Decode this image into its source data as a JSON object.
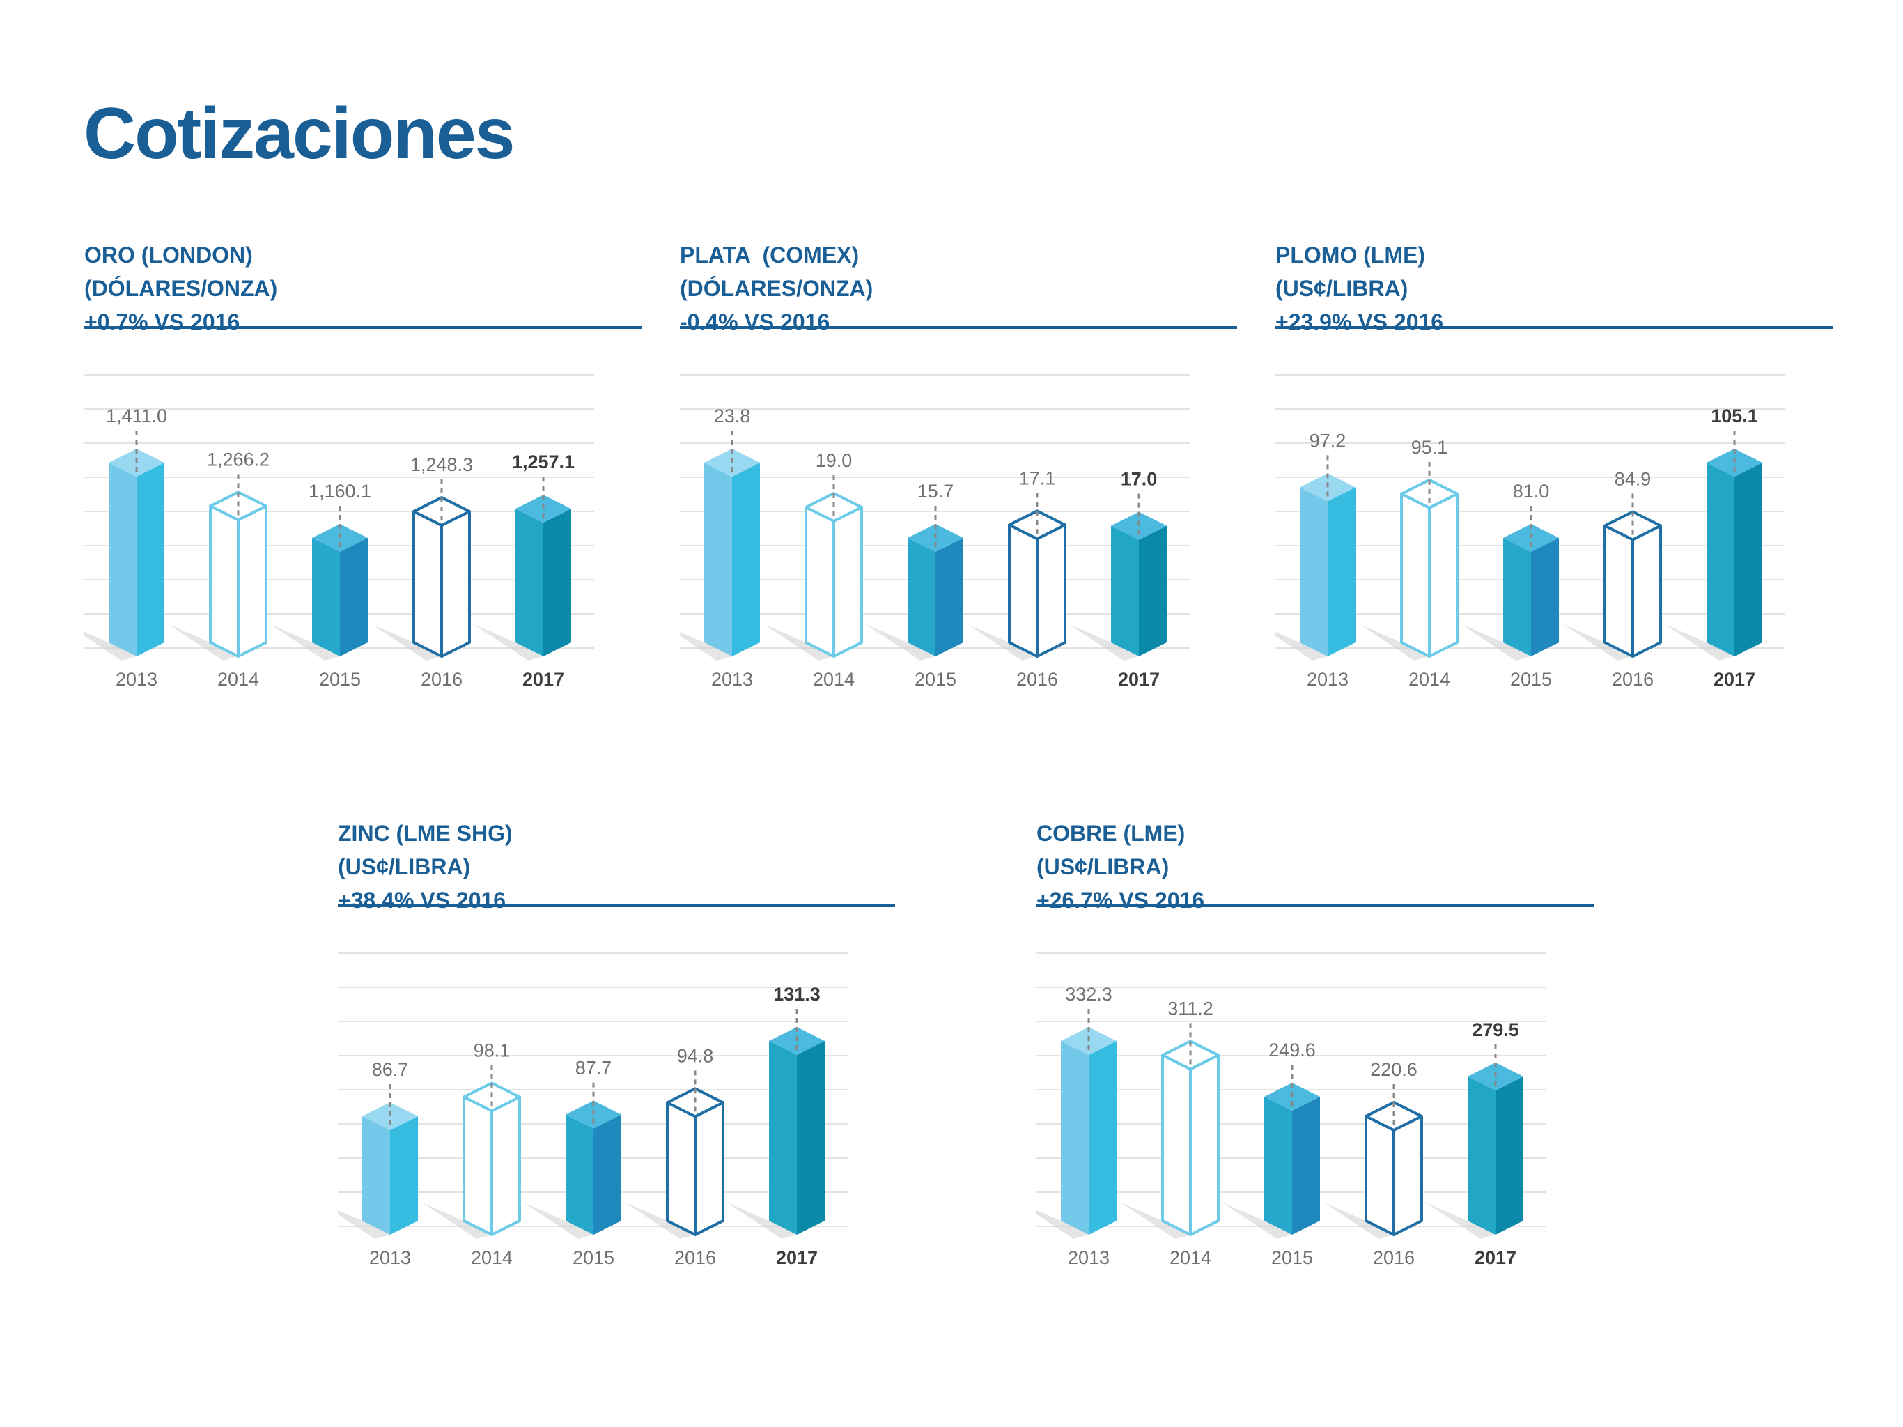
{
  "page": {
    "title": "Cotizaciones"
  },
  "chart_data": [
    {
      "type": "bar",
      "title": "ORO (LONDON)",
      "subtitle": "(DÓLARES/ONZA)",
      "change": "+0.7% VS 2016",
      "categories": [
        "2013",
        "2014",
        "2015",
        "2016",
        "2017"
      ],
      "values": [
        1411.0,
        1266.2,
        1160.1,
        1248.3,
        1257.1
      ],
      "value_labels": [
        "1,411.0",
        "1,266.2",
        "1,160.1",
        "1,248.3",
        "1,257.1"
      ],
      "highlight": "2017"
    },
    {
      "type": "bar",
      "title": "PLATA  (COMEX)",
      "subtitle": "(DÓLARES/ONZA)",
      "change": "-0.4% VS 2016",
      "categories": [
        "2013",
        "2014",
        "2015",
        "2016",
        "2017"
      ],
      "values": [
        23.8,
        19.0,
        15.7,
        17.1,
        17.0
      ],
      "value_labels": [
        "23.8",
        "19.0",
        "15.7",
        "17.1",
        "17.0"
      ],
      "highlight": "2017"
    },
    {
      "type": "bar",
      "title": "PLOMO (LME)",
      "subtitle": "(US¢/LIBRA)",
      "change": "+23.9% VS 2016",
      "categories": [
        "2013",
        "2014",
        "2015",
        "2016",
        "2017"
      ],
      "values": [
        97.2,
        95.1,
        81.0,
        84.9,
        105.1
      ],
      "value_labels": [
        "97.2",
        "95.1",
        "81.0",
        "84.9",
        "105.1"
      ],
      "highlight": "2017"
    },
    {
      "type": "bar",
      "title": "ZINC (LME SHG)",
      "subtitle": "(US¢/LIBRA)",
      "change": "+38.4% VS 2016",
      "categories": [
        "2013",
        "2014",
        "2015",
        "2016",
        "2017"
      ],
      "values": [
        86.7,
        98.1,
        87.7,
        94.8,
        131.3
      ],
      "value_labels": [
        "86.7",
        "98.1",
        "87.7",
        "94.8",
        "131.3"
      ],
      "highlight": "2017"
    },
    {
      "type": "bar",
      "title": "COBRE (LME)",
      "subtitle": "(US¢/LIBRA)",
      "change": "+26.7% VS 2016",
      "categories": [
        "2013",
        "2014",
        "2015",
        "2016",
        "2017"
      ],
      "values": [
        332.3,
        311.2,
        249.6,
        220.6,
        279.5
      ],
      "value_labels": [
        "332.3",
        "311.2",
        "249.6",
        "220.6",
        "279.5"
      ],
      "highlight": "2017"
    }
  ],
  "colors": {
    "title": "#1a5e96",
    "bar_2013": [
      "#74c9ea",
      "#35bce0",
      "#98d9f1"
    ],
    "bar_2014_outline": "#6ccbe8",
    "bar_2015": [
      "#26a7cc",
      "#1f88bd",
      "#4cb9de"
    ],
    "bar_2016_outline": "#1f6fa6",
    "bar_2017": [
      "#22a6c6",
      "#0a8aa8",
      "#4cb9de"
    ],
    "label": "#707070",
    "label_bold": "#3c3c3c",
    "grid": "#e3e3e3"
  }
}
